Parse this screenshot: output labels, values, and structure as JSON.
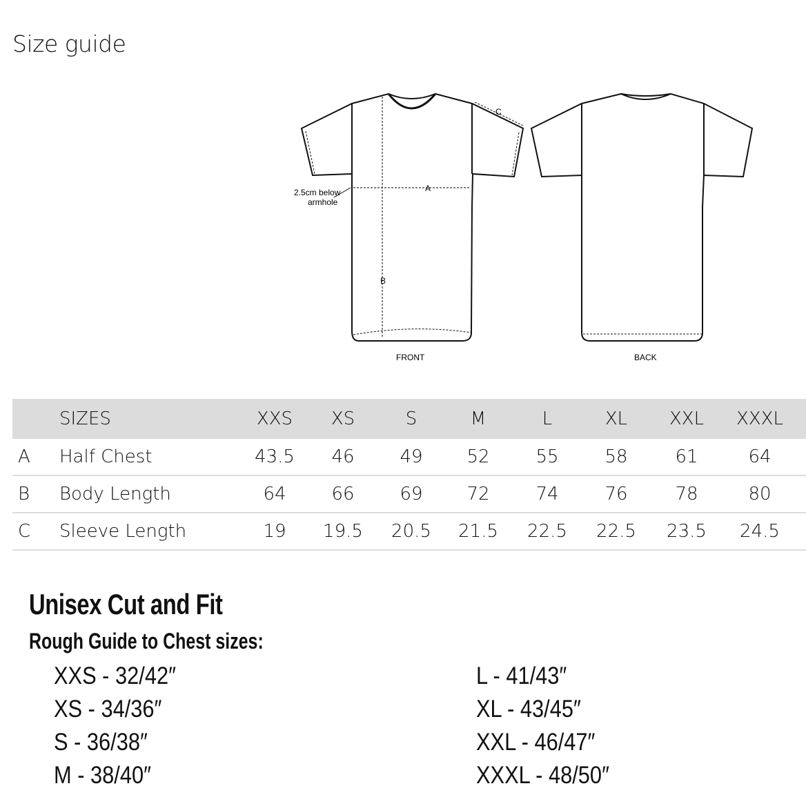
{
  "title": "Size guide",
  "diagram": {
    "front_label": "FRONT",
    "back_label": "BACK",
    "measure_a": "A",
    "measure_b": "B",
    "measure_c": "C",
    "note_line1": "2.5cm below",
    "note_line2": "armhole"
  },
  "table": {
    "header": {
      "label": "SIZES",
      "sizes": [
        "XXS",
        "XS",
        "S",
        "M",
        "L",
        "XL",
        "XXL",
        "XXXL"
      ]
    },
    "rows": [
      {
        "key": "A",
        "name": "Half Chest",
        "values": [
          "43.5",
          "46",
          "49",
          "52",
          "55",
          "58",
          "61",
          "64"
        ]
      },
      {
        "key": "B",
        "name": "Body Length",
        "values": [
          "64",
          "66",
          "69",
          "72",
          "74",
          "76",
          "78",
          "80"
        ]
      },
      {
        "key": "C",
        "name": "Sleeve Length",
        "values": [
          "19",
          "19.5",
          "20.5",
          "21.5",
          "22.5",
          "22.5",
          "23.5",
          "24.5"
        ]
      }
    ]
  },
  "fit": {
    "heading": "Unisex Cut and Fit",
    "subheading": "Rough Guide to Chest sizes:",
    "left": [
      "XXS - 32/42″",
      "XS - 34/36″",
      "S - 36/38″",
      "M - 38/40″"
    ],
    "right": [
      "L - 41/43″",
      "XL - 43/45″",
      "XXL - 46/47″",
      "XXXL - 48/50″"
    ]
  },
  "colors": {
    "header_bg": "#dcdcdc",
    "row_border": "#dddddd"
  }
}
